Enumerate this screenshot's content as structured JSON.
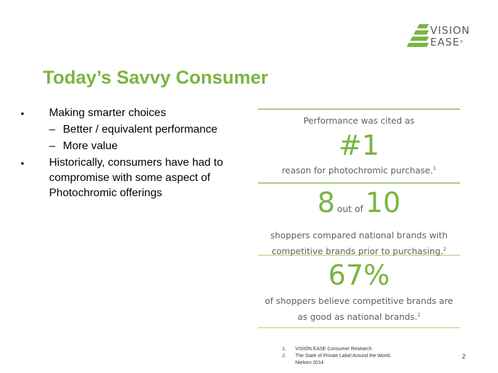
{
  "logo": {
    "line1": "VISION",
    "line2": "EASE",
    "tm": "®",
    "brand_color": "#7ab441"
  },
  "title": "Today’s Savvy Consumer",
  "bullets": [
    {
      "text": "Making smarter choices",
      "sub": [
        "Better / equivalent performance",
        "More value"
      ]
    },
    {
      "text_lines": [
        "Historically, consumers have had to",
        "compromise with some aspect of",
        "Photochromic offerings"
      ]
    }
  ],
  "bullet_char": "•",
  "dash_char": "–",
  "stats": {
    "stat1": {
      "lead": "Performance was cited as",
      "big": "#1",
      "desc": "reason for photochromic purchase.",
      "ref": "1"
    },
    "stat2": {
      "num1": "8",
      "out_of": "out of",
      "num2": "10",
      "desc_line1": "shoppers compared national brands with",
      "desc_line2": "competitive brands prior to purchasing.",
      "ref": "2"
    },
    "stat3": {
      "big": "67%",
      "desc_line1": "of shoppers believe competitive brands are",
      "desc_line2": "as good as national brands.",
      "ref": "2"
    }
  },
  "footnotes": [
    {
      "num": "1.",
      "text": "VISION EASE Consumer Research"
    },
    {
      "num": "2.",
      "text": "The State of Private Label Around the World.",
      "text2": "Nielsen 2014"
    }
  ],
  "page_number": "2",
  "colors": {
    "accent": "#7ab441",
    "rule": "#a7cc7d",
    "stat_text": "#606060"
  }
}
